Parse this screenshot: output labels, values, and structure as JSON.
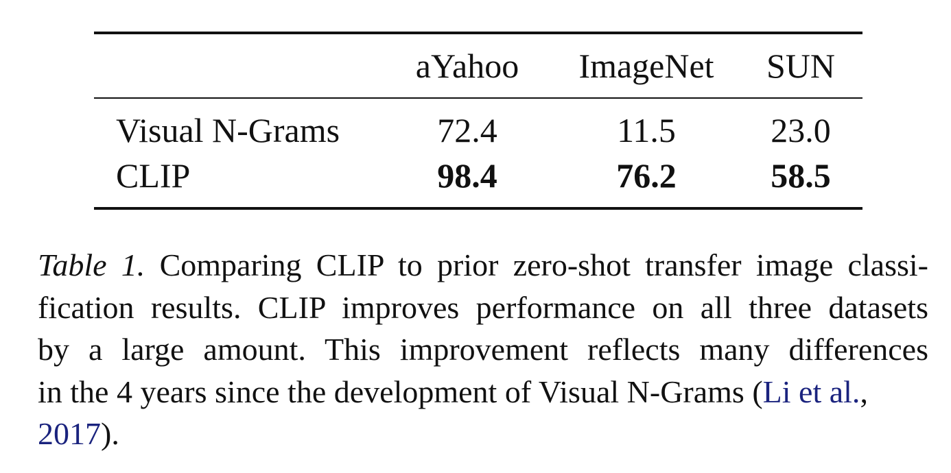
{
  "table": {
    "headers": [
      "",
      "aYahoo",
      "ImageNet",
      "SUN"
    ],
    "rows": [
      {
        "method": "Visual N-Grams",
        "values": [
          "72.4",
          "11.5",
          "23.0"
        ]
      },
      {
        "method": "CLIP",
        "values": [
          "98.4",
          "76.2",
          "58.5"
        ]
      }
    ]
  },
  "caption": {
    "label": "Table 1.",
    "line1": "Comparing CLIP to prior zero-shot transfer image classi-",
    "line2": "fication results. CLIP improves performance on all three datasets",
    "line3": "by a large amount. This improvement reflects many differences",
    "line4_text": "in the 4 years since the development of Visual N-Grams (",
    "citation_authors": "Li et al.",
    "citation_sep": ",",
    "citation_year": "2017",
    "line5_tail": ")."
  },
  "colors": {
    "text": "#111111",
    "link": "#1a237e",
    "rule": "#111111"
  }
}
